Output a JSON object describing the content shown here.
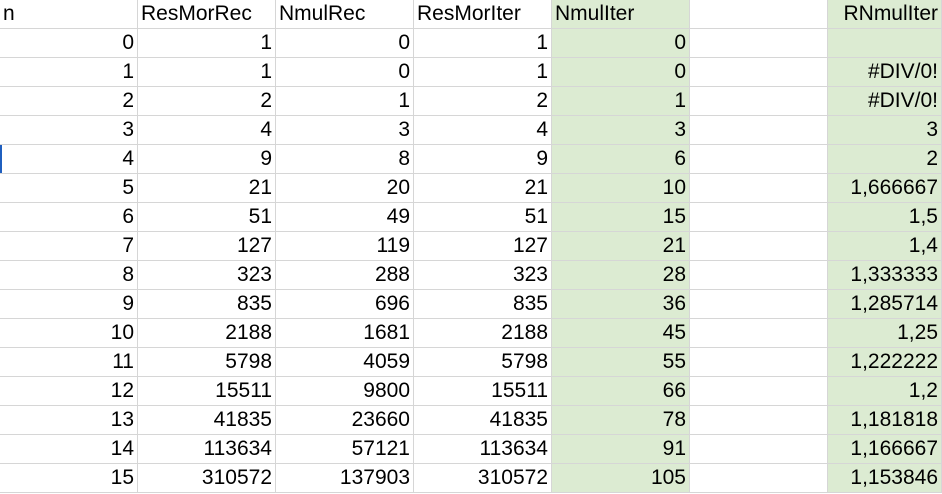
{
  "headers": [
    "n",
    "ResMorRec",
    "NmulRec",
    "ResMorIter",
    "NmulIter",
    "",
    "RNmulIter"
  ],
  "rows": [
    [
      "0",
      "1",
      "0",
      "1",
      "0",
      "",
      ""
    ],
    [
      "1",
      "1",
      "0",
      "1",
      "0",
      "",
      "#DIV/0!"
    ],
    [
      "2",
      "2",
      "1",
      "2",
      "1",
      "",
      "#DIV/0!"
    ],
    [
      "3",
      "4",
      "3",
      "4",
      "3",
      "",
      "3"
    ],
    [
      "4",
      "9",
      "8",
      "9",
      "6",
      "",
      "2"
    ],
    [
      "5",
      "21",
      "20",
      "21",
      "10",
      "",
      "1,666667"
    ],
    [
      "6",
      "51",
      "49",
      "51",
      "15",
      "",
      "1,5"
    ],
    [
      "7",
      "127",
      "119",
      "127",
      "21",
      "",
      "1,4"
    ],
    [
      "8",
      "323",
      "288",
      "323",
      "28",
      "",
      "1,333333"
    ],
    [
      "9",
      "835",
      "696",
      "835",
      "36",
      "",
      "1,285714"
    ],
    [
      "10",
      "2188",
      "1681",
      "2188",
      "45",
      "",
      "1,25"
    ],
    [
      "11",
      "5798",
      "4059",
      "5798",
      "55",
      "",
      "1,222222"
    ],
    [
      "12",
      "15511",
      "9800",
      "15511",
      "66",
      "",
      "1,2"
    ],
    [
      "13",
      "41835",
      "23660",
      "41835",
      "78",
      "",
      "1,181818"
    ],
    [
      "14",
      "113634",
      "57121",
      "113634",
      "91",
      "",
      "1,166667"
    ],
    [
      "15",
      "310572",
      "137903",
      "310572",
      "105",
      "",
      "1,153846"
    ]
  ],
  "highlight_color": "#dcebd2",
  "highlighted_columns": [
    4,
    6
  ]
}
